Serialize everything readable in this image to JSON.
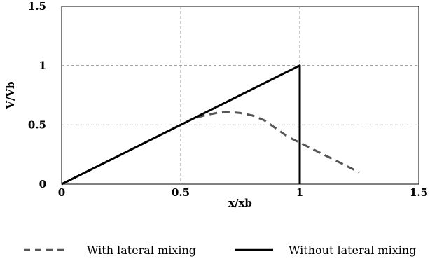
{
  "chart_data": {
    "type": "line",
    "title": "",
    "xlabel": "x/xb",
    "ylabel": "V/Vb",
    "xlim": [
      0,
      1.5
    ],
    "ylim": [
      0,
      1.5
    ],
    "x_ticks": [
      "0",
      "0.5",
      "1",
      "1.5"
    ],
    "y_ticks": [
      "0",
      "0.5",
      "1",
      "1.5"
    ],
    "grid": true,
    "legend_position": "bottom",
    "series": [
      {
        "name": "With lateral mixing",
        "style": "dashed",
        "color": "#555555",
        "x": [
          0,
          0.1,
          0.2,
          0.3,
          0.4,
          0.5,
          0.55,
          0.6,
          0.65,
          0.7,
          0.75,
          0.8,
          0.85,
          0.9,
          0.95,
          1.0,
          1.05,
          1.1,
          1.15,
          1.2,
          1.25
        ],
        "y": [
          0,
          0.1,
          0.2,
          0.3,
          0.4,
          0.5,
          0.55,
          0.58,
          0.6,
          0.61,
          0.6,
          0.58,
          0.54,
          0.47,
          0.4,
          0.35,
          0.3,
          0.25,
          0.2,
          0.15,
          0.1
        ]
      },
      {
        "name": "Without lateral mixing",
        "style": "solid",
        "color": "#000000",
        "x": [
          0,
          0.25,
          0.5,
          0.75,
          1.0,
          1.0
        ],
        "y": [
          0,
          0.25,
          0.5,
          0.75,
          1.0,
          0
        ]
      }
    ]
  }
}
